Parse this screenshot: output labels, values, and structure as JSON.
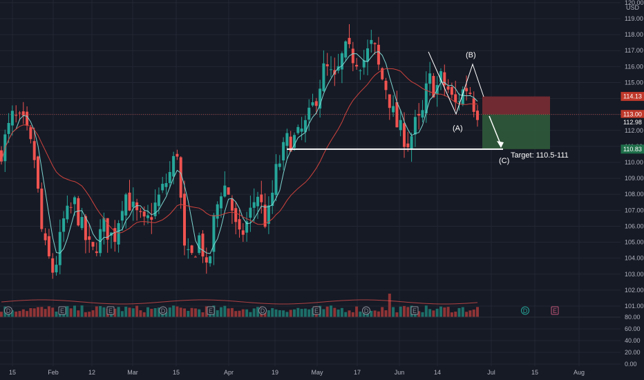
{
  "colors": {
    "background": "#161a25",
    "grid": "#232733",
    "up": "#26a69a",
    "down": "#ef5350",
    "vol_up": "#1d6f69",
    "vol_down": "#8f3436",
    "sma_fast": "#7fd6d1",
    "sma_slow": "#d0433d",
    "axis_text": "#b2b5be",
    "annotation": "#ffffff",
    "stop_zone": "#7a2c33",
    "target_zone": "#2f5a3a"
  },
  "chart_data": {
    "type": "candlestick",
    "price_axis": {
      "unit": "USD",
      "range": [
        100,
        120
      ],
      "ticks": [
        "101.00",
        "102.00",
        "103.00",
        "104.00",
        "105.00",
        "106.00",
        "107.00",
        "108.00",
        "109.00",
        "110.00",
        "111.00",
        "112.00",
        "113.00",
        "114.00",
        "115.00",
        "116.00",
        "117.00",
        "118.00",
        "119.00",
        "120.00"
      ]
    },
    "volume_axis": {
      "ticks": [
        "0.00",
        "20.00",
        "40.00",
        "60.00",
        "80.00"
      ]
    },
    "x_ticks": [
      "15",
      "Feb",
      "12",
      "Mar",
      "15",
      "Apr",
      "19",
      "May",
      "17",
      "Jun",
      "14",
      "Jul",
      "15",
      "Aug"
    ],
    "price_tags": [
      {
        "label": "114.13",
        "value": 114.13,
        "style": "red"
      },
      {
        "label": "113.00",
        "value": 113.0,
        "style": "red"
      },
      {
        "label": "112.98",
        "value": 112.98,
        "style": "dark"
      },
      {
        "label": "110.83",
        "value": 110.83,
        "style": "green"
      }
    ],
    "annotations": [
      {
        "text": "(B)"
      },
      {
        "text": "(A)"
      },
      {
        "text": "(C)"
      },
      {
        "text": "Target: 110.5-111"
      }
    ],
    "event_markers": [
      "D",
      "E",
      "E",
      "D",
      "E",
      "D",
      "E",
      "D",
      "E",
      "D",
      "E"
    ],
    "position": {
      "entry": 113.0,
      "stop": 114.13,
      "target": 110.83
    },
    "support_level": 110.83,
    "indicators": [
      "SMA fast",
      "SMA slow"
    ]
  }
}
